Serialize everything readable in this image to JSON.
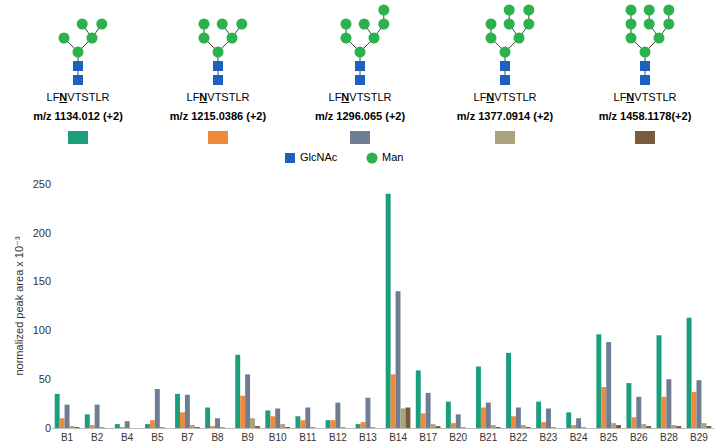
{
  "chart_data": {
    "type": "bar",
    "ylabel": "normalized peak area x 10⁻³",
    "categories": [
      "B1",
      "B2",
      "B4",
      "B5",
      "B7",
      "B8",
      "B9",
      "B10",
      "B11",
      "B12",
      "B13",
      "B14",
      "B17",
      "B20",
      "B21",
      "B22",
      "B23",
      "B24",
      "B25",
      "B26",
      "B28",
      "B29"
    ],
    "series": [
      {
        "name": "m/z 1134.012 (+2)",
        "color": "#1b9e7c",
        "values": [
          35,
          14,
          4,
          4,
          35,
          21,
          75,
          18,
          12,
          8,
          4,
          240,
          59,
          27,
          63,
          77,
          27,
          16,
          96,
          46,
          95,
          113
        ]
      },
      {
        "name": "m/z 1215.0386 (+2)",
        "color": "#ee8a3e",
        "values": [
          10,
          3,
          1,
          8,
          16,
          2,
          33,
          12,
          8,
          8,
          6,
          55,
          15,
          5,
          21,
          12,
          6,
          3,
          42,
          11,
          32,
          37
        ]
      },
      {
        "name": "m/z 1296.065 (+2)",
        "color": "#6e7d92",
        "values": [
          24,
          24,
          7,
          40,
          34,
          10,
          55,
          20,
          21,
          26,
          31,
          140,
          36,
          14,
          26,
          21,
          20,
          10,
          88,
          32,
          50,
          49
        ]
      },
      {
        "name": "m/z 1377.0914 (+2)",
        "color": "#aaa27c",
        "values": [
          2,
          1,
          0,
          1,
          3,
          1,
          10,
          4,
          1,
          1,
          1,
          20,
          4,
          1,
          3,
          3,
          1,
          1,
          5,
          4,
          3,
          5
        ]
      },
      {
        "name": "m/z 1458.1178(+2)",
        "color": "#7b5b3d",
        "values": [
          1,
          0,
          0,
          0,
          1,
          0,
          2,
          1,
          0,
          0,
          0,
          21,
          2,
          0,
          1,
          1,
          0,
          0,
          3,
          2,
          2,
          2
        ]
      }
    ],
    "ylim": [
      0,
      250
    ],
    "yticks": [
      0,
      50,
      100,
      150,
      200,
      250
    ],
    "grid": false,
    "data_labels": false,
    "legend": "top"
  },
  "glycans": {
    "peptide": [
      "LF",
      "N",
      "VTSTLR"
    ],
    "symbols": [
      {
        "label": "GlcNAc",
        "color": "#1f5fbf",
        "marker": "square"
      },
      {
        "label": "Man",
        "color": "#2bb24c",
        "marker": "circle"
      }
    ]
  }
}
